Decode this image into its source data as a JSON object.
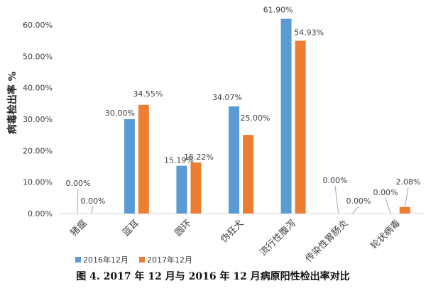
{
  "chart_data": {
    "type": "bar",
    "title": "",
    "ylabel": "病毒检出率 %",
    "xlabel": "",
    "caption": "图 4.  2017 年 12 月与 2016 年 12 月病原阳性检出率对比",
    "categories": [
      "猪瘟",
      "蓝耳",
      "圆环",
      "伪狂犬",
      "流行性腹泻",
      "传染性胃肠炎",
      "轮状病毒"
    ],
    "series": [
      {
        "name": "2016年12月",
        "color": "#5B9BD5",
        "values": [
          0.0,
          30.0,
          15.19,
          34.07,
          61.9,
          0.0,
          0.0
        ],
        "labels": [
          "0.00%",
          "30.00%",
          "15.19%",
          "34.07%",
          "61.90%",
          "0.00%",
          "0.00%"
        ]
      },
      {
        "name": "2017年12月",
        "color": "#ED7D31",
        "values": [
          0.0,
          34.55,
          16.22,
          25.0,
          54.93,
          0.0,
          2.08
        ],
        "labels": [
          "0.00%",
          "34.55%",
          "16.22%",
          "25.00%",
          "54.93%",
          "0.00%",
          "2.08%"
        ]
      }
    ],
    "ylim": [
      0,
      70
    ],
    "yticks": [
      0,
      10,
      20,
      30,
      40,
      50,
      60
    ],
    "ytick_labels": [
      "0.00%",
      "10.00%",
      "20.00%",
      "30.00%",
      "40.00%",
      "50.00%",
      "60.00%"
    ],
    "grid": false,
    "legend_position": "bottom-left"
  }
}
